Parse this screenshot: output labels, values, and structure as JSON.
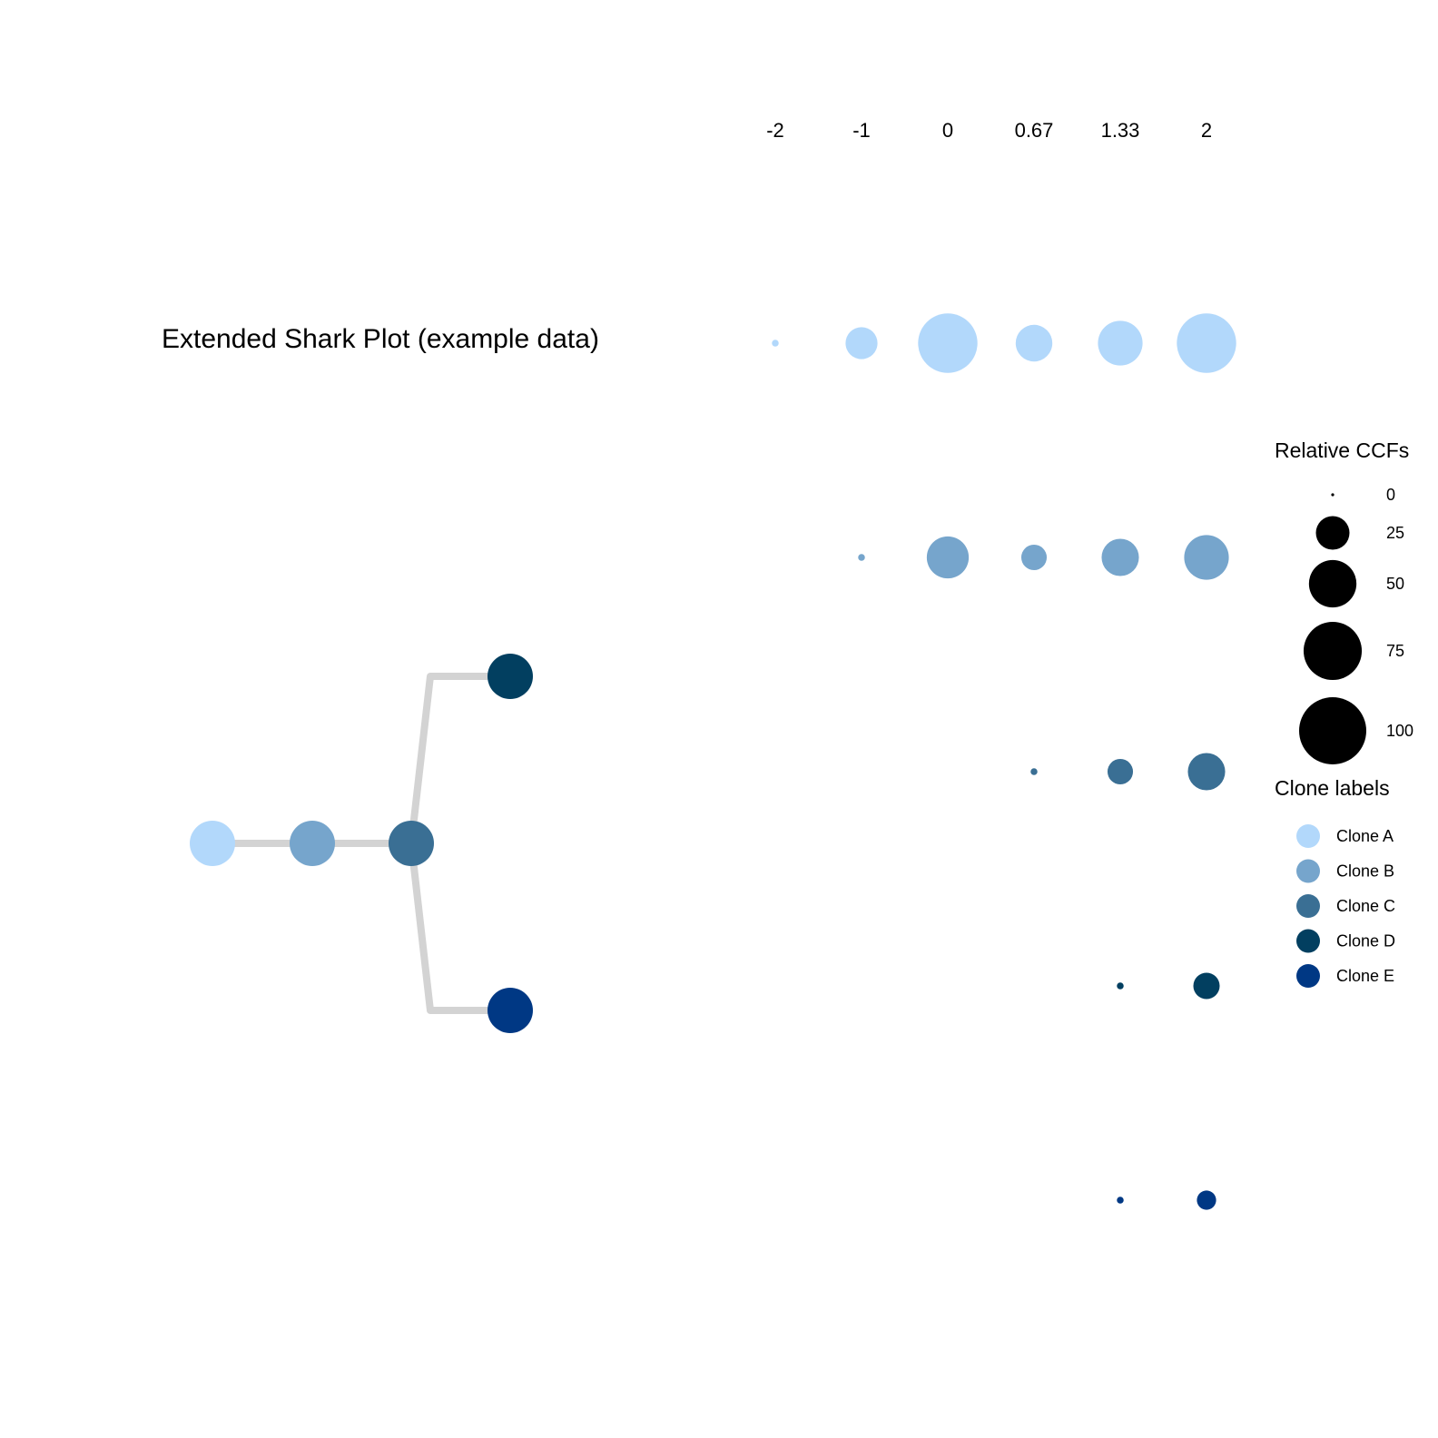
{
  "chart_data": {
    "type": "scatter",
    "title": "Extended Shark Plot (example data)",
    "x_ticks": [
      "-2",
      "-1",
      "0",
      "0.67",
      "1.33",
      "2"
    ],
    "x_values": [
      -2,
      -1,
      0,
      0.67,
      1.33,
      2
    ],
    "size_legend": {
      "title": "Relative CCFs",
      "breaks": [
        0,
        25,
        50,
        75,
        100
      ],
      "labels": [
        "0",
        "25",
        "50",
        "75",
        "100"
      ]
    },
    "color_legend": {
      "title": "Clone labels",
      "labels": [
        "Clone A",
        "Clone B",
        "Clone C",
        "Clone D",
        "Clone E"
      ]
    },
    "series": [
      {
        "name": "Clone A",
        "color": "#b2d8fb",
        "values": [
          1,
          22,
          76,
          29,
          43,
          76
        ]
      },
      {
        "name": "Clone B",
        "color": "#76a5cc",
        "values": [
          null,
          1,
          38,
          14,
          30,
          43
        ]
      },
      {
        "name": "Clone C",
        "color": "#3a6f94",
        "values": [
          null,
          null,
          null,
          1,
          14,
          30
        ]
      },
      {
        "name": "Clone D",
        "color": "#023f60",
        "values": [
          null,
          null,
          null,
          null,
          1,
          15
        ]
      },
      {
        "name": "Clone E",
        "color": "#003884",
        "values": [
          null,
          null,
          null,
          null,
          1,
          8
        ]
      }
    ],
    "tree": {
      "edge_color": "#d3d3d3",
      "edges": [
        [
          "Clone A",
          "Clone B"
        ],
        [
          "Clone B",
          "Clone C"
        ],
        [
          "Clone C",
          "Clone D"
        ],
        [
          "Clone C",
          "Clone E"
        ]
      ]
    }
  }
}
